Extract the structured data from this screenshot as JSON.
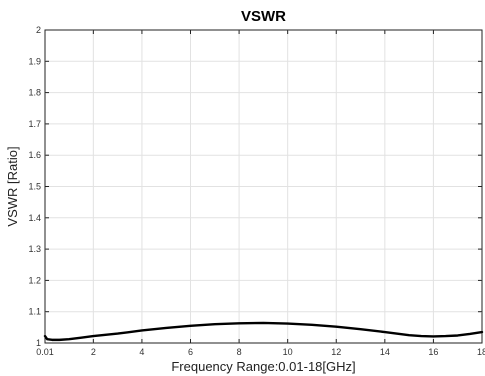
{
  "chart_data": {
    "type": "line",
    "title": "VSWR",
    "xlabel": "Frequency Range:0.01-18[GHz]",
    "ylabel": "VSWR [Ratio]",
    "xlim": [
      0.01,
      18
    ],
    "ylim": [
      1,
      2
    ],
    "xticks": [
      0.01,
      2,
      4,
      6,
      8,
      10,
      12,
      14,
      16,
      18
    ],
    "xtick_labels": [
      "0.01",
      "2",
      "4",
      "6",
      "8",
      "10",
      "12",
      "14",
      "16",
      "18"
    ],
    "yticks": [
      1,
      1.1,
      1.2,
      1.3,
      1.4,
      1.5,
      1.6,
      1.7,
      1.8,
      1.9,
      2
    ],
    "ytick_labels": [
      "1",
      "1.1",
      "1.2",
      "1.3",
      "1.4",
      "1.5",
      "1.6",
      "1.7",
      "1.8",
      "1.9",
      "2"
    ],
    "grid": true,
    "line_color": "#000000",
    "series": [
      {
        "x": [
          0.01,
          0.1,
          0.3,
          0.6,
          1,
          1.5,
          2,
          3,
          4,
          5,
          6,
          7,
          8,
          9,
          10,
          11,
          12,
          13,
          14,
          15,
          15.5,
          16,
          16.5,
          17,
          17.5,
          18
        ],
        "y": [
          1.022,
          1.012,
          1.01,
          1.01,
          1.012,
          1.017,
          1.022,
          1.03,
          1.04,
          1.048,
          1.055,
          1.06,
          1.063,
          1.064,
          1.062,
          1.058,
          1.052,
          1.044,
          1.035,
          1.025,
          1.022,
          1.021,
          1.022,
          1.024,
          1.029,
          1.035
        ]
      }
    ]
  }
}
